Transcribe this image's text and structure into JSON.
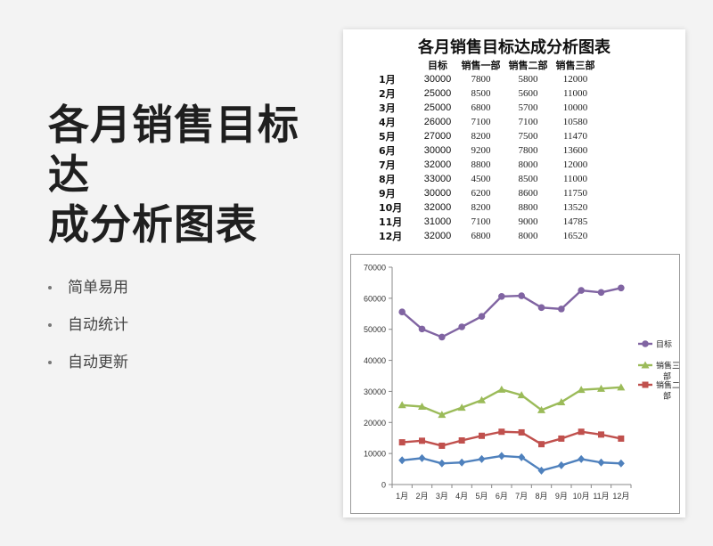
{
  "hero": {
    "title_line1": "各月销售目标达",
    "title_line2": "成分析图表"
  },
  "features": [
    "简单易用",
    "自动统计",
    "自动更新"
  ],
  "sheet": {
    "title": "各月销售目标达成分析图表",
    "headers": [
      "",
      "目标",
      "销售一部",
      "销售二部",
      "销售三部"
    ],
    "rows": [
      [
        "1月",
        "30000",
        "7800",
        "5800",
        "12000"
      ],
      [
        "2月",
        "25000",
        "8500",
        "5600",
        "11000"
      ],
      [
        "3月",
        "25000",
        "6800",
        "5700",
        "10000"
      ],
      [
        "4月",
        "26000",
        "7100",
        "7100",
        "10580"
      ],
      [
        "5月",
        "27000",
        "8200",
        "7500",
        "11470"
      ],
      [
        "6月",
        "30000",
        "9200",
        "7800",
        "13600"
      ],
      [
        "7月",
        "32000",
        "8800",
        "8000",
        "12000"
      ],
      [
        "8月",
        "33000",
        "4500",
        "8500",
        "11000"
      ],
      [
        "9月",
        "30000",
        "6200",
        "8600",
        "11750"
      ],
      [
        "10月",
        "32000",
        "8200",
        "8800",
        "13520"
      ],
      [
        "11月",
        "31000",
        "7100",
        "9000",
        "14785"
      ],
      [
        "12月",
        "32000",
        "6800",
        "8000",
        "16520"
      ]
    ]
  },
  "chart_data": {
    "type": "line",
    "stacked": true,
    "categories": [
      "1月",
      "2月",
      "3月",
      "4月",
      "5月",
      "6月",
      "7月",
      "8月",
      "9月",
      "10月",
      "11月",
      "12月"
    ],
    "ylim": [
      0,
      70000
    ],
    "yticks": [
      "0",
      "10000",
      "20000",
      "30000",
      "40000",
      "50000",
      "60000",
      "70000"
    ],
    "series": [
      {
        "values": [
          7800,
          8500,
          6800,
          7100,
          8200,
          9200,
          8800,
          4500,
          6200,
          8200,
          7100,
          6800
        ],
        "color": "#4f81bd",
        "marker": "diamond"
      },
      {
        "name": "销售二部",
        "values": [
          13600,
          14100,
          12500,
          14200,
          15700,
          17000,
          16800,
          13000,
          14800,
          17000,
          16100,
          14800
        ],
        "color": "#c0504d",
        "marker": "square"
      },
      {
        "name": "销售三部",
        "values": [
          25600,
          25100,
          22500,
          24780,
          27170,
          30600,
          28800,
          24000,
          26550,
          30520,
          30885,
          31320
        ],
        "color": "#9bbb59",
        "marker": "triangle"
      },
      {
        "name": "目标",
        "values": [
          55600,
          50100,
          47500,
          50780,
          54170,
          60600,
          60800,
          57000,
          56550,
          62520,
          61885,
          63320
        ],
        "color": "#8064a2",
        "marker": "circle"
      }
    ],
    "legend": [
      "目标",
      "销售三部",
      "销售二部"
    ],
    "legend_position": "right"
  }
}
